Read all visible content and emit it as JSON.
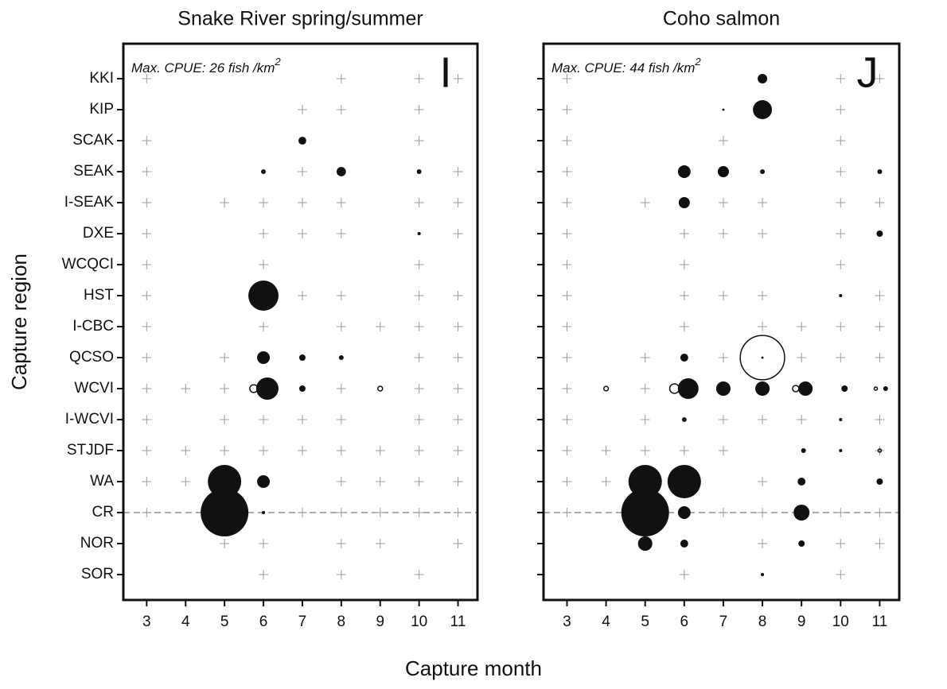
{
  "chart_data": [
    {
      "type": "bubble",
      "title": "Snake River spring/summer",
      "annotation": "Max. CPUE: 26 fish /km",
      "annotation_sup": "2",
      "panel_label": "I",
      "x_label": "Capture month",
      "y_label": "Capture region",
      "ytick_labels": true,
      "categories": [
        "KKI",
        "KIP",
        "SCAK",
        "SEAK",
        "I-SEAK",
        "DXE",
        "WCQCI",
        "HST",
        "I-CBC",
        "QCSO",
        "WCVI",
        "I-WCVI",
        "STJDF",
        "WA",
        "CR",
        "NOR",
        "SOR"
      ],
      "xlim": [
        2.4,
        11.5
      ],
      "xticks": [
        3,
        4,
        5,
        6,
        7,
        8,
        9,
        10,
        11
      ],
      "dashed_at": "CR",
      "points": {
        "x": [
          7,
          6,
          8,
          10,
          10,
          6,
          6,
          7,
          8,
          6.1,
          7,
          5,
          6,
          5,
          6
        ],
        "y": [
          "SCAK",
          "SEAK",
          "SEAK",
          "SEAK",
          "DXE",
          "HST",
          "QCSO",
          "QCSO",
          "QCSO",
          "WCVI",
          "WCVI",
          "WA",
          "WA",
          "CR",
          "CR"
        ],
        "values": [
          0.7,
          0.26,
          1.0,
          0.26,
          0.12,
          10.4,
          1.85,
          0.46,
          0.26,
          5.7,
          0.46,
          12.7,
          1.85,
          26,
          0.12
        ]
      },
      "open_points": {
        "x": [
          5.75,
          9
        ],
        "y": [
          "WCVI",
          "WCVI"
        ],
        "values": [
          0.7,
          0.26
        ]
      },
      "crosses": [
        {
          "y": "KKI",
          "x": [
            3,
            8,
            10,
            11
          ]
        },
        {
          "y": "KIP",
          "x": [
            7,
            8,
            10
          ]
        },
        {
          "y": "SCAK",
          "x": [
            3,
            10
          ]
        },
        {
          "y": "SEAK",
          "x": [
            3,
            7,
            11
          ]
        },
        {
          "y": "I-SEAK",
          "x": [
            3,
            5,
            6,
            7,
            8,
            10,
            11
          ]
        },
        {
          "y": "DXE",
          "x": [
            3,
            6,
            7,
            8,
            11
          ]
        },
        {
          "y": "WCQCI",
          "x": [
            3,
            6,
            10
          ]
        },
        {
          "y": "HST",
          "x": [
            3,
            7,
            8,
            10,
            11
          ]
        },
        {
          "y": "I-CBC",
          "x": [
            3,
            6,
            8,
            9,
            10,
            11
          ]
        },
        {
          "y": "QCSO",
          "x": [
            3,
            5,
            10,
            11
          ]
        },
        {
          "y": "WCVI",
          "x": [
            3,
            4,
            5,
            8,
            10,
            11
          ]
        },
        {
          "y": "I-WCVI",
          "x": [
            3,
            5,
            6,
            7,
            8,
            10,
            11
          ]
        },
        {
          "y": "STJDF",
          "x": [
            3,
            4,
            5,
            6,
            7,
            8,
            9,
            10,
            11
          ]
        },
        {
          "y": "WA",
          "x": [
            3,
            4,
            8,
            9,
            10,
            11
          ]
        },
        {
          "y": "CR",
          "x": [
            3,
            7,
            8,
            9,
            10,
            11
          ]
        },
        {
          "y": "NOR",
          "x": [
            5,
            6,
            8,
            9,
            11
          ]
        },
        {
          "y": "SOR",
          "x": [
            6,
            8,
            10
          ]
        }
      ]
    },
    {
      "type": "bubble",
      "title": "Coho salmon",
      "annotation": "Max. CPUE: 44 fish /km",
      "annotation_sup": "2",
      "panel_label": "J",
      "ytick_labels": false,
      "categories": [
        "KKI",
        "KIP",
        "SCAK",
        "SEAK",
        "I-SEAK",
        "DXE",
        "WCQCI",
        "HST",
        "I-CBC",
        "QCSO",
        "WCVI",
        "I-WCVI",
        "STJDF",
        "WA",
        "CR",
        "NOR",
        "SOR"
      ],
      "xlim": [
        2.4,
        11.5
      ],
      "xticks": [
        3,
        4,
        5,
        6,
        7,
        8,
        9,
        10,
        11
      ],
      "dashed_at": "CR",
      "points": {
        "x": [
          8,
          7,
          8,
          6,
          7,
          8,
          11,
          6,
          11,
          10,
          6,
          8,
          6.1,
          7,
          8,
          9.1,
          10.1,
          11.15,
          6,
          10,
          9.05,
          10,
          5,
          6,
          9,
          11,
          5,
          6,
          9,
          5,
          6,
          9,
          8
        ],
        "y": [
          "KKI",
          "KIP",
          "KIP",
          "SEAK",
          "SEAK",
          "SEAK",
          "SEAK",
          "I-SEAK",
          "DXE",
          "HST",
          "QCSO",
          "QCSO",
          "WCVI",
          "WCVI",
          "WCVI",
          "WCVI",
          "WCVI",
          "WCVI",
          "I-WCVI",
          "I-WCVI",
          "STJDF",
          "STJDF",
          "WA",
          "WA",
          "WA",
          "WA",
          "CR",
          "CR",
          "CR",
          "NOR",
          "NOR",
          "NOR",
          "SOR"
        ],
        "values": [
          1.76,
          0.1,
          7.0,
          3.1,
          2.4,
          0.44,
          0.44,
          2.4,
          0.78,
          0.2,
          1.2,
          0.1,
          8.3,
          4.0,
          4.0,
          4.0,
          0.78,
          0.44,
          0.44,
          0.2,
          0.44,
          0.2,
          21.6,
          21.6,
          1.2,
          0.78,
          44,
          3.1,
          4.9,
          4.0,
          1.2,
          0.78,
          0.2
        ]
      },
      "open_points": {
        "x": [
          8,
          4,
          5.75,
          8.85,
          10.9,
          11
        ],
        "y": [
          "QCSO",
          "WCVI",
          "WCVI",
          "WCVI",
          "WCVI",
          "STJDF"
        ],
        "values": [
          38,
          0.4,
          1.76,
          0.78,
          0.2,
          0.2
        ]
      },
      "crosses": [
        {
          "y": "KKI",
          "x": [
            3,
            10,
            11
          ]
        },
        {
          "y": "KIP",
          "x": [
            3,
            10
          ]
        },
        {
          "y": "SCAK",
          "x": [
            3,
            7,
            10
          ]
        },
        {
          "y": "SEAK",
          "x": [
            3,
            10
          ]
        },
        {
          "y": "I-SEAK",
          "x": [
            3,
            5,
            7,
            8,
            10,
            11
          ]
        },
        {
          "y": "DXE",
          "x": [
            3,
            6,
            7,
            8,
            10
          ]
        },
        {
          "y": "WCQCI",
          "x": [
            3,
            6,
            10
          ]
        },
        {
          "y": "HST",
          "x": [
            3,
            6,
            7,
            8,
            11
          ]
        },
        {
          "y": "I-CBC",
          "x": [
            3,
            6,
            8,
            9,
            10,
            11
          ]
        },
        {
          "y": "QCSO",
          "x": [
            3,
            5,
            7,
            9,
            10,
            11
          ]
        },
        {
          "y": "WCVI",
          "x": [
            3,
            5
          ]
        },
        {
          "y": "I-WCVI",
          "x": [
            3,
            5,
            7,
            8,
            9,
            11
          ]
        },
        {
          "y": "STJDF",
          "x": [
            3,
            4,
            5,
            6,
            7,
            11
          ]
        },
        {
          "y": "WA",
          "x": [
            3,
            4,
            8
          ]
        },
        {
          "y": "CR",
          "x": [
            3,
            7,
            8,
            10,
            11
          ]
        },
        {
          "y": "NOR",
          "x": [
            8,
            10,
            11
          ]
        },
        {
          "y": "SOR",
          "x": [
            6,
            10
          ]
        }
      ]
    }
  ]
}
